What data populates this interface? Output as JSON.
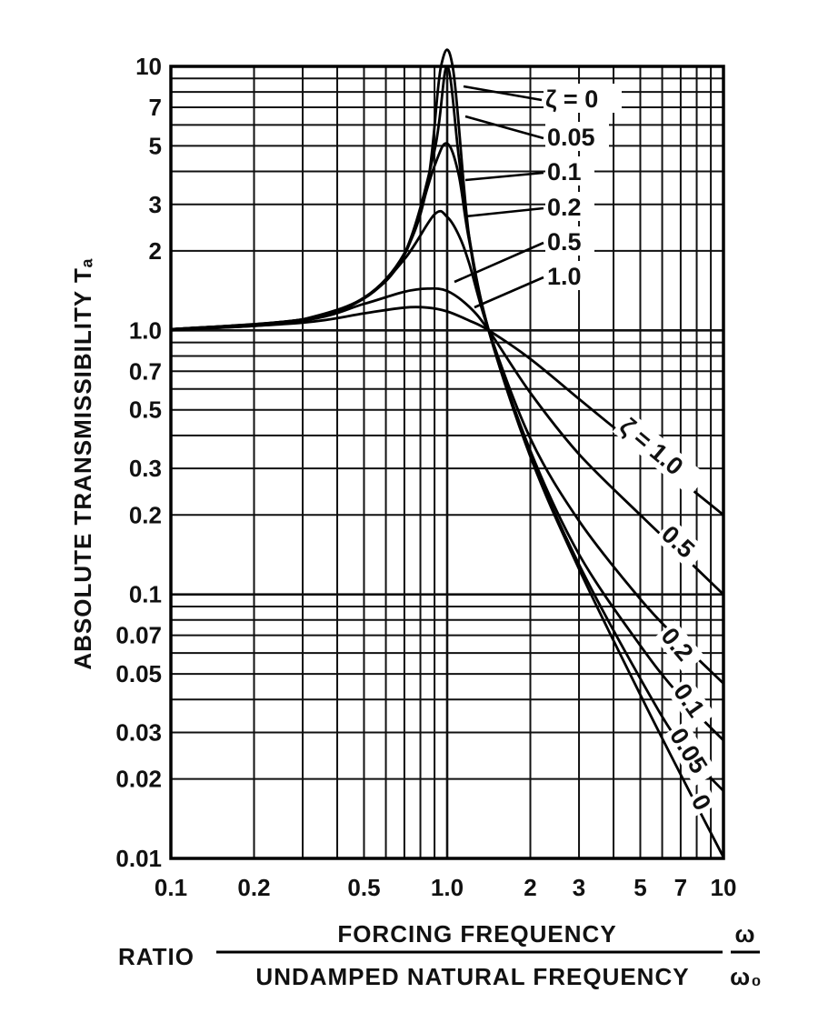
{
  "chart_data": {
    "type": "line",
    "xlabel": "RATIO",
    "xlabel_numerator": "FORCING FREQUENCY",
    "xlabel_denominator": "UNDAMPED NATURAL FREQUENCY",
    "xlabel_symbol_num": "ω",
    "xlabel_symbol_den": "ω₀",
    "ylabel": "ABSOLUTE TRANSMISSIBILITY Tₐ",
    "x_scale": "log",
    "y_scale": "log",
    "xlim": [
      0.1,
      10
    ],
    "ylim": [
      0.01,
      10
    ],
    "grid": true,
    "x_tick_labels": [
      "0.1",
      "0.2",
      "0.5",
      "1.0",
      "2",
      "3",
      "5",
      "7",
      "10"
    ],
    "x_tick_values": [
      0.1,
      0.2,
      0.5,
      1.0,
      2,
      3,
      5,
      7,
      10
    ],
    "y_tick_labels": [
      "10",
      "7",
      "5",
      "3",
      "2",
      "1.0",
      "0.7",
      "0.5",
      "0.3",
      "0.2",
      "0.1",
      "0.07",
      "0.05",
      "0.03",
      "0.02",
      "0.01"
    ],
    "y_tick_values": [
      10,
      7,
      5,
      3,
      2,
      1.0,
      0.7,
      0.5,
      0.3,
      0.2,
      0.1,
      0.07,
      0.05,
      0.03,
      0.02,
      0.01
    ],
    "series": [
      {
        "zeta": 0,
        "x": [
          0.1,
          0.2,
          0.3,
          0.5,
          0.7,
          0.85,
          0.95,
          1.05,
          1.2,
          1.414,
          2,
          3,
          5,
          7,
          10
        ],
        "y": [
          1.01,
          1.04,
          1.1,
          1.33,
          1.96,
          3.6,
          10.3,
          9.8,
          2.27,
          1.0,
          0.333,
          0.125,
          0.0417,
          0.0208,
          0.0101
        ]
      },
      {
        "zeta": 0.05,
        "x": [
          0.1,
          0.3,
          0.5,
          0.7,
          0.9,
          1.0,
          1.1,
          1.2,
          1.414,
          2,
          3,
          5,
          7,
          10
        ],
        "y": [
          1.01,
          1.1,
          1.33,
          1.95,
          4.8,
          10.0,
          4.6,
          2.27,
          1.0,
          0.338,
          0.13,
          0.048,
          0.027,
          0.018
        ]
      },
      {
        "zeta": 0.1,
        "x": [
          0.1,
          0.3,
          0.5,
          0.7,
          0.9,
          1.0,
          1.1,
          1.2,
          1.414,
          2,
          3,
          5,
          7,
          10
        ],
        "y": [
          1.01,
          1.1,
          1.33,
          1.93,
          4.2,
          5.1,
          3.9,
          2.2,
          1.0,
          0.35,
          0.142,
          0.064,
          0.041,
          0.028
        ]
      },
      {
        "zeta": 0.2,
        "x": [
          0.1,
          0.3,
          0.5,
          0.7,
          0.9,
          1.0,
          1.1,
          1.2,
          1.414,
          2,
          3,
          5,
          7,
          10
        ],
        "y": [
          1.01,
          1.1,
          1.32,
          1.86,
          2.75,
          2.69,
          2.3,
          1.8,
          1.0,
          0.39,
          0.19,
          0.096,
          0.066,
          0.046
        ]
      },
      {
        "zeta": 0.5,
        "x": [
          0.1,
          0.3,
          0.5,
          0.7,
          0.85,
          1.0,
          1.2,
          1.414,
          2,
          3,
          5,
          7,
          10
        ],
        "y": [
          1.01,
          1.09,
          1.26,
          1.4,
          1.44,
          1.41,
          1.23,
          1.0,
          0.58,
          0.34,
          0.2,
          0.143,
          0.1
        ]
      },
      {
        "zeta": 1.0,
        "x": [
          0.1,
          0.3,
          0.5,
          0.7,
          0.85,
          1.0,
          1.2,
          1.414,
          2,
          3,
          4,
          5,
          7,
          10
        ],
        "y": [
          1.0,
          1.07,
          1.16,
          1.22,
          1.22,
          1.18,
          1.09,
          1.0,
          0.78,
          0.55,
          0.43,
          0.36,
          0.27,
          0.2
        ]
      }
    ],
    "annotations_top": [
      "ζ = 0",
      "0.05",
      "0.1",
      "0.2",
      "0.5",
      "1.0"
    ],
    "annotations_tail": [
      "ζ = 1.0",
      "0.5",
      "0.2",
      "0.1",
      "0.05",
      "0"
    ]
  }
}
